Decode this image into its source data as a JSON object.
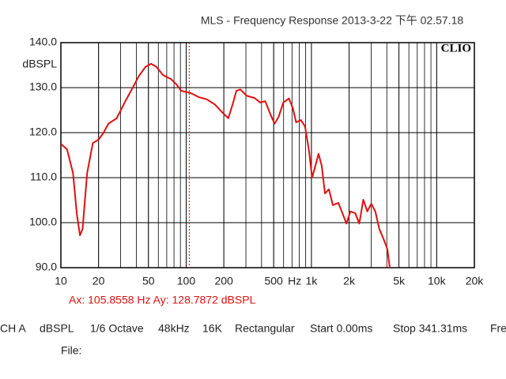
{
  "chart_data": {
    "type": "line",
    "title": "MLS - Frequency Response  2013-3-22 下午 02.57.18",
    "logo": "CLIO",
    "y_label": "dBSPL",
    "x_label": "Hz",
    "x_log": true,
    "grid": true,
    "xlim": [
      10,
      20000
    ],
    "ylim": [
      90,
      140
    ],
    "xticks": [
      10,
      20,
      50,
      100,
      200,
      500,
      {
        "value": 1000,
        "label": "1k"
      },
      {
        "value": 2000,
        "label": "2k"
      },
      {
        "value": 5000,
        "label": "5k"
      },
      {
        "value": 10000,
        "label": "10k"
      },
      {
        "value": 20000,
        "label": "20k"
      }
    ],
    "yticks": [
      {
        "value": 90,
        "label": "90.0"
      },
      {
        "value": 100,
        "label": "100.0"
      },
      {
        "value": 110,
        "label": "110.0"
      },
      {
        "value": 120,
        "label": "120.0"
      },
      {
        "value": 130,
        "label": "130.0"
      },
      {
        "value": 140,
        "label": "140.0"
      }
    ],
    "x": [
      10,
      11.2,
      12.5,
      13.4,
      14.2,
      14.9,
      16.2,
      18,
      19.9,
      21.7,
      24,
      27.9,
      32.3,
      36.3,
      42,
      47.3,
      52.5,
      58,
      65.3,
      75.7,
      83.8,
      91.5,
      109,
      126,
      146,
      169,
      196,
      217,
      234,
      252,
      271,
      304,
      352,
      390,
      428,
      472,
      508,
      547,
      597,
      662,
      712,
      755,
      825,
      889,
      956,
      1013,
      1075,
      1140,
      1209,
      1283,
      1380,
      1484,
      1642,
      1769,
      1904,
      2049,
      2240,
      2412,
      2596,
      2794,
      3007,
      3237,
      3484,
      3750,
      4036,
      4220
    ],
    "series": [
      {
        "name": "CH A",
        "color": "#e01010",
        "values": [
          117.5,
          116.3,
          111,
          102,
          97.2,
          98.6,
          111,
          117.7,
          118.4,
          119.8,
          122,
          123.2,
          126.7,
          129.3,
          132.6,
          134.6,
          135.3,
          134.6,
          132.8,
          131.9,
          130.7,
          129.3,
          128.8,
          127.9,
          127.4,
          126.3,
          124.4,
          123.2,
          126.1,
          129.3,
          129.6,
          128.2,
          127.7,
          126.7,
          127,
          124,
          122,
          123.5,
          126.7,
          127.6,
          125.4,
          122.3,
          122.8,
          121.4,
          116.1,
          110,
          112.6,
          115.3,
          112.6,
          106.5,
          107.4,
          103.9,
          104.4,
          102.1,
          99.8,
          102.5,
          102.1,
          99.8,
          105.1,
          102.5,
          104.2,
          102.5,
          98.6,
          96.5,
          94.2,
          90
        ]
      }
    ],
    "cursor_x": 105.8558,
    "cursor_label": "Ax: 105.8558 Hz  Ay: 128.7872 dBSPL",
    "status": [
      "CH A",
      "dBSPL",
      "1/6 Octave",
      "48kHz",
      "16K",
      "Rectangular",
      "Start 0.00ms",
      "Stop 341.31ms",
      "Fre"
    ],
    "file_label": "File:"
  }
}
